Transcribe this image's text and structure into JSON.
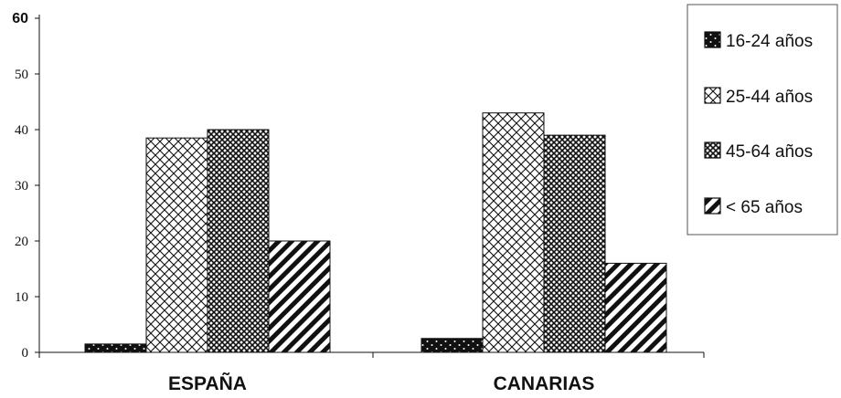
{
  "chart_data": {
    "type": "bar",
    "categories": [
      "ESPAÑA",
      "CANARIAS"
    ],
    "series": [
      {
        "name": "16-24 años",
        "values": [
          1.5,
          2.5
        ],
        "pattern": "dots"
      },
      {
        "name": "25-44 años",
        "values": [
          38.5,
          43
        ],
        "pattern": "crosshatch"
      },
      {
        "name": "45-64 años",
        "values": [
          40,
          39
        ],
        "pattern": "dense-check"
      },
      {
        "name": "< 65 años",
        "values": [
          20,
          16
        ],
        "pattern": "diagonal"
      }
    ],
    "ylim": [
      0,
      60
    ],
    "yticks": [
      0,
      10,
      20,
      30,
      40,
      50,
      60
    ],
    "ytick_labels": [
      "0",
      "10",
      "20",
      "30",
      "40",
      "50",
      "60"
    ],
    "grid": false,
    "legend_position": "top-right",
    "colors": {
      "bar_fill": "#ffffff",
      "ink": "#111111"
    }
  }
}
